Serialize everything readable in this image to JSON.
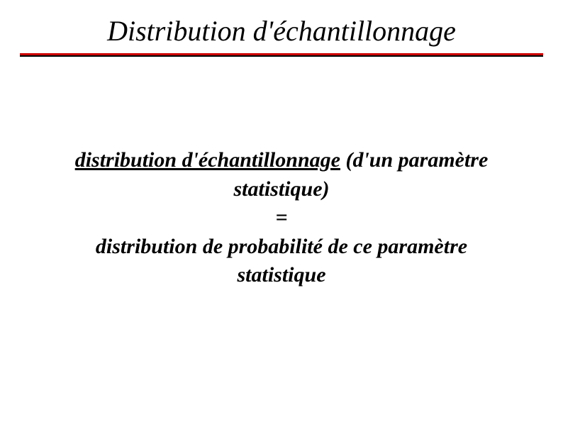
{
  "slide": {
    "title": "Distribution d'échantillonnage",
    "content": {
      "line1_underlined": "distribution d'échantillonnage",
      "line1_rest": " (d'un paramètre",
      "line2": "statistique)",
      "line3": "=",
      "line4": "distribution de probabilité de ce paramètre",
      "line5": "statistique"
    },
    "colors": {
      "title_text": "#000000",
      "body_text": "#000000",
      "underline_red": "#cc0000",
      "underline_black": "#000000",
      "background": "#ffffff"
    },
    "typography": {
      "title_fontsize": 40,
      "body_fontsize": 30,
      "font_family": "Times New Roman",
      "title_style": "italic",
      "body_style": "italic bold"
    }
  }
}
